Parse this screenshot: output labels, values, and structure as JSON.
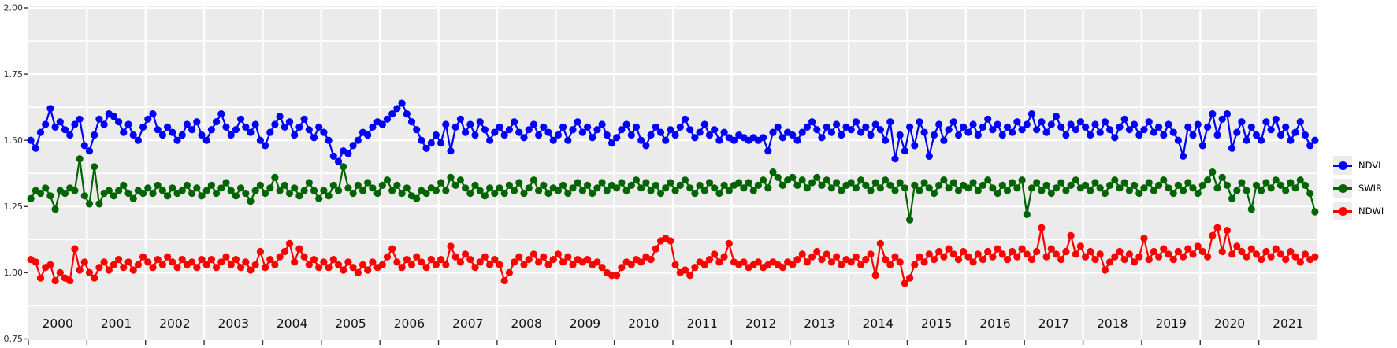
{
  "theme": {
    "page_background": "#ffffff",
    "panel_background": "#ebebeb",
    "grid_color": "#ffffff",
    "axis_text_color": "#303030",
    "year_label_color": "#111111",
    "tick_color": "#333333",
    "legend_key_background": "#ececec"
  },
  "legend": {
    "position": "right",
    "entries": [
      {
        "label": "NDVI",
        "color": "#0000ff"
      },
      {
        "label": "SWIR",
        "color": "#006400"
      },
      {
        "label": "NDWI",
        "color": "#ff0000"
      }
    ]
  },
  "chart_data": {
    "type": "line",
    "title": "",
    "xlabel": "",
    "ylabel": "",
    "grid": true,
    "x_axis": {
      "start_year": 2000,
      "end_year_exclusive": 2022,
      "cadence": "monthly",
      "tick_years": [
        "2000",
        "2001",
        "2002",
        "2003",
        "2004",
        "2005",
        "2006",
        "2007",
        "2008",
        "2009",
        "2010",
        "2011",
        "2012",
        "2013",
        "2014",
        "2015",
        "2016",
        "2017",
        "2018",
        "2019",
        "2020",
        "2021"
      ]
    },
    "y_axis": {
      "range": [
        0.75,
        2.0
      ],
      "tick_values": [
        2.0,
        1.75,
        1.5,
        1.25,
        1.0,
        0.75
      ],
      "tick_labels": [
        "2.00",
        "1.75",
        "1.50",
        "1.25",
        "1.00",
        "0.75"
      ],
      "minor_step": 0.125
    },
    "series": [
      {
        "name": "NDVI",
        "color": "#0000ff",
        "values": [
          1.5,
          1.47,
          1.53,
          1.56,
          1.62,
          1.55,
          1.57,
          1.54,
          1.52,
          1.56,
          1.58,
          1.48,
          1.46,
          1.52,
          1.58,
          1.56,
          1.6,
          1.59,
          1.57,
          1.53,
          1.56,
          1.52,
          1.5,
          1.55,
          1.58,
          1.6,
          1.54,
          1.52,
          1.55,
          1.53,
          1.5,
          1.52,
          1.56,
          1.54,
          1.57,
          1.52,
          1.5,
          1.54,
          1.57,
          1.6,
          1.55,
          1.52,
          1.54,
          1.58,
          1.55,
          1.53,
          1.56,
          1.5,
          1.48,
          1.53,
          1.56,
          1.59,
          1.55,
          1.57,
          1.52,
          1.55,
          1.58,
          1.54,
          1.51,
          1.55,
          1.53,
          1.5,
          1.44,
          1.42,
          1.46,
          1.45,
          1.48,
          1.5,
          1.53,
          1.52,
          1.55,
          1.57,
          1.56,
          1.58,
          1.6,
          1.62,
          1.64,
          1.6,
          1.57,
          1.54,
          1.5,
          1.47,
          1.49,
          1.52,
          1.49,
          1.56,
          1.46,
          1.55,
          1.58,
          1.53,
          1.56,
          1.52,
          1.57,
          1.54,
          1.5,
          1.53,
          1.55,
          1.52,
          1.54,
          1.57,
          1.53,
          1.51,
          1.54,
          1.56,
          1.52,
          1.55,
          1.53,
          1.5,
          1.52,
          1.55,
          1.5,
          1.54,
          1.57,
          1.53,
          1.55,
          1.51,
          1.54,
          1.56,
          1.52,
          1.49,
          1.51,
          1.54,
          1.56,
          1.52,
          1.55,
          1.5,
          1.48,
          1.52,
          1.55,
          1.53,
          1.5,
          1.54,
          1.52,
          1.55,
          1.58,
          1.54,
          1.51,
          1.53,
          1.56,
          1.52,
          1.54,
          1.5,
          1.53,
          1.51,
          1.5,
          1.52,
          1.51,
          1.5,
          1.51,
          1.5,
          1.51,
          1.46,
          1.53,
          1.55,
          1.51,
          1.53,
          1.52,
          1.5,
          1.53,
          1.55,
          1.57,
          1.54,
          1.51,
          1.55,
          1.53,
          1.56,
          1.52,
          1.55,
          1.54,
          1.57,
          1.53,
          1.55,
          1.52,
          1.56,
          1.54,
          1.5,
          1.57,
          1.43,
          1.52,
          1.46,
          1.55,
          1.48,
          1.57,
          1.53,
          1.44,
          1.52,
          1.56,
          1.5,
          1.54,
          1.57,
          1.52,
          1.55,
          1.53,
          1.56,
          1.52,
          1.55,
          1.58,
          1.54,
          1.56,
          1.52,
          1.55,
          1.53,
          1.57,
          1.54,
          1.56,
          1.6,
          1.54,
          1.57,
          1.53,
          1.56,
          1.59,
          1.55,
          1.52,
          1.56,
          1.54,
          1.57,
          1.55,
          1.52,
          1.56,
          1.53,
          1.57,
          1.54,
          1.51,
          1.55,
          1.58,
          1.54,
          1.56,
          1.52,
          1.54,
          1.57,
          1.53,
          1.55,
          1.52,
          1.56,
          1.53,
          1.5,
          1.44,
          1.55,
          1.52,
          1.56,
          1.48,
          1.55,
          1.6,
          1.52,
          1.58,
          1.6,
          1.47,
          1.53,
          1.57,
          1.5,
          1.55,
          1.52,
          1.5,
          1.57,
          1.54,
          1.58,
          1.52,
          1.55,
          1.5,
          1.53,
          1.57,
          1.52,
          1.48,
          1.5
        ]
      },
      {
        "name": "SWIR",
        "color": "#006400",
        "values": [
          1.28,
          1.31,
          1.3,
          1.32,
          1.29,
          1.24,
          1.31,
          1.3,
          1.32,
          1.31,
          1.43,
          1.29,
          1.26,
          1.4,
          1.26,
          1.3,
          1.31,
          1.29,
          1.31,
          1.33,
          1.3,
          1.28,
          1.31,
          1.3,
          1.32,
          1.3,
          1.33,
          1.31,
          1.29,
          1.32,
          1.3,
          1.31,
          1.33,
          1.3,
          1.32,
          1.29,
          1.31,
          1.33,
          1.3,
          1.32,
          1.34,
          1.31,
          1.29,
          1.32,
          1.3,
          1.27,
          1.31,
          1.33,
          1.3,
          1.32,
          1.36,
          1.31,
          1.33,
          1.3,
          1.32,
          1.29,
          1.31,
          1.34,
          1.31,
          1.28,
          1.31,
          1.29,
          1.33,
          1.31,
          1.4,
          1.32,
          1.3,
          1.33,
          1.31,
          1.34,
          1.32,
          1.3,
          1.33,
          1.35,
          1.31,
          1.33,
          1.3,
          1.32,
          1.29,
          1.28,
          1.31,
          1.3,
          1.32,
          1.31,
          1.34,
          1.31,
          1.36,
          1.33,
          1.35,
          1.32,
          1.3,
          1.33,
          1.31,
          1.29,
          1.32,
          1.3,
          1.32,
          1.3,
          1.33,
          1.31,
          1.34,
          1.3,
          1.32,
          1.35,
          1.31,
          1.33,
          1.3,
          1.32,
          1.31,
          1.33,
          1.3,
          1.32,
          1.34,
          1.31,
          1.33,
          1.3,
          1.32,
          1.34,
          1.31,
          1.33,
          1.32,
          1.34,
          1.31,
          1.33,
          1.35,
          1.32,
          1.34,
          1.31,
          1.33,
          1.3,
          1.32,
          1.34,
          1.31,
          1.33,
          1.35,
          1.32,
          1.3,
          1.33,
          1.31,
          1.34,
          1.32,
          1.3,
          1.33,
          1.31,
          1.33,
          1.34,
          1.32,
          1.34,
          1.31,
          1.33,
          1.35,
          1.32,
          1.38,
          1.36,
          1.33,
          1.35,
          1.36,
          1.33,
          1.35,
          1.32,
          1.34,
          1.36,
          1.33,
          1.35,
          1.32,
          1.34,
          1.31,
          1.33,
          1.34,
          1.32,
          1.35,
          1.33,
          1.31,
          1.34,
          1.32,
          1.35,
          1.33,
          1.31,
          1.34,
          1.32,
          1.2,
          1.33,
          1.31,
          1.34,
          1.32,
          1.3,
          1.33,
          1.35,
          1.32,
          1.34,
          1.31,
          1.33,
          1.32,
          1.34,
          1.31,
          1.33,
          1.35,
          1.32,
          1.3,
          1.33,
          1.31,
          1.34,
          1.32,
          1.35,
          1.22,
          1.32,
          1.34,
          1.31,
          1.33,
          1.3,
          1.32,
          1.34,
          1.31,
          1.33,
          1.35,
          1.32,
          1.33,
          1.31,
          1.34,
          1.32,
          1.3,
          1.33,
          1.35,
          1.32,
          1.34,
          1.31,
          1.33,
          1.3,
          1.32,
          1.34,
          1.31,
          1.33,
          1.35,
          1.32,
          1.3,
          1.33,
          1.31,
          1.34,
          1.32,
          1.3,
          1.33,
          1.35,
          1.38,
          1.32,
          1.36,
          1.33,
          1.28,
          1.31,
          1.34,
          1.31,
          1.24,
          1.33,
          1.31,
          1.34,
          1.32,
          1.35,
          1.33,
          1.31,
          1.34,
          1.32,
          1.35,
          1.33,
          1.3,
          1.23
        ]
      },
      {
        "name": "NDWI",
        "color": "#ff0000",
        "values": [
          1.05,
          1.04,
          0.98,
          1.02,
          1.03,
          0.97,
          1.0,
          0.98,
          0.97,
          1.09,
          1.01,
          1.04,
          1.0,
          0.98,
          1.02,
          1.04,
          1.01,
          1.03,
          1.05,
          1.02,
          1.04,
          1.01,
          1.03,
          1.06,
          1.04,
          1.02,
          1.05,
          1.03,
          1.06,
          1.04,
          1.02,
          1.05,
          1.03,
          1.04,
          1.02,
          1.05,
          1.03,
          1.05,
          1.02,
          1.04,
          1.06,
          1.03,
          1.05,
          1.02,
          1.04,
          1.01,
          1.03,
          1.08,
          1.02,
          1.05,
          1.03,
          1.06,
          1.08,
          1.11,
          1.04,
          1.09,
          1.06,
          1.03,
          1.05,
          1.02,
          1.04,
          1.02,
          1.05,
          1.03,
          1.01,
          1.04,
          1.02,
          1.0,
          1.03,
          1.01,
          1.04,
          1.02,
          1.03,
          1.06,
          1.09,
          1.04,
          1.02,
          1.05,
          1.03,
          1.06,
          1.04,
          1.02,
          1.05,
          1.03,
          1.05,
          1.03,
          1.1,
          1.06,
          1.04,
          1.07,
          1.05,
          1.02,
          1.04,
          1.06,
          1.03,
          1.05,
          1.03,
          0.97,
          1.0,
          1.04,
          1.06,
          1.03,
          1.05,
          1.07,
          1.04,
          1.06,
          1.03,
          1.05,
          1.07,
          1.04,
          1.06,
          1.03,
          1.05,
          1.04,
          1.05,
          1.03,
          1.04,
          1.02,
          1.0,
          0.99,
          0.99,
          1.02,
          1.04,
          1.03,
          1.05,
          1.04,
          1.06,
          1.05,
          1.09,
          1.12,
          1.13,
          1.12,
          1.03,
          1.0,
          1.01,
          0.99,
          1.02,
          1.04,
          1.03,
          1.05,
          1.07,
          1.04,
          1.06,
          1.11,
          1.04,
          1.03,
          1.04,
          1.02,
          1.03,
          1.04,
          1.02,
          1.03,
          1.04,
          1.03,
          1.02,
          1.04,
          1.03,
          1.05,
          1.07,
          1.04,
          1.06,
          1.08,
          1.05,
          1.07,
          1.04,
          1.06,
          1.03,
          1.05,
          1.04,
          1.06,
          1.03,
          1.05,
          1.07,
          0.99,
          1.11,
          1.05,
          1.03,
          1.06,
          1.04,
          0.96,
          0.98,
          1.03,
          1.06,
          1.04,
          1.07,
          1.05,
          1.08,
          1.06,
          1.09,
          1.07,
          1.05,
          1.08,
          1.06,
          1.04,
          1.07,
          1.05,
          1.08,
          1.06,
          1.09,
          1.07,
          1.05,
          1.08,
          1.06,
          1.09,
          1.07,
          1.05,
          1.08,
          1.17,
          1.06,
          1.09,
          1.07,
          1.05,
          1.08,
          1.14,
          1.07,
          1.1,
          1.06,
          1.08,
          1.05,
          1.07,
          1.01,
          1.04,
          1.06,
          1.08,
          1.05,
          1.07,
          1.04,
          1.06,
          1.13,
          1.05,
          1.08,
          1.06,
          1.09,
          1.07,
          1.05,
          1.08,
          1.06,
          1.09,
          1.07,
          1.1,
          1.08,
          1.06,
          1.14,
          1.17,
          1.08,
          1.16,
          1.07,
          1.1,
          1.08,
          1.06,
          1.09,
          1.07,
          1.05,
          1.08,
          1.06,
          1.09,
          1.07,
          1.05,
          1.08,
          1.06,
          1.04,
          1.07,
          1.05,
          1.06
        ]
      }
    ]
  }
}
